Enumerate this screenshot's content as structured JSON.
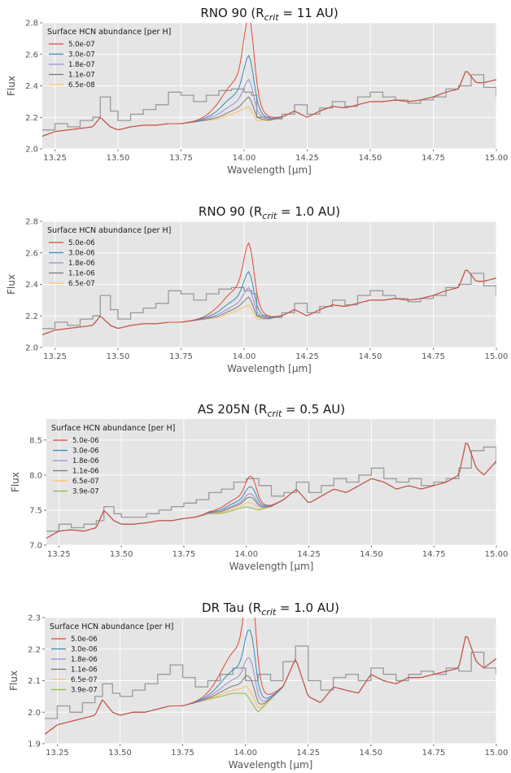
{
  "figure_title": "",
  "chart_data": [
    {
      "type": "line",
      "title_main": "RNO 90 (R",
      "title_sub": "crit",
      "title_rest": " = 11 AU)",
      "xlabel": "Wavelength [μm]",
      "ylabel": "Flux",
      "xlim": [
        13.2,
        15.0
      ],
      "ylim": [
        2.0,
        2.8
      ],
      "xticks": [
        "13.25",
        "13.50",
        "13.75",
        "14.00",
        "14.25",
        "14.50",
        "14.75",
        "15.00"
      ],
      "yticks": [
        "2.0",
        "2.2",
        "2.4",
        "2.6",
        "2.8"
      ],
      "grid": true,
      "legend_title": "Surface HCN abundance [per H]",
      "legend_position": "top-left",
      "observed": {
        "x": [
          13.2,
          13.25,
          13.3,
          13.35,
          13.4,
          13.43,
          13.47,
          13.5,
          13.55,
          13.6,
          13.65,
          13.7,
          13.75,
          13.8,
          13.85,
          13.9,
          13.95,
          14.0,
          14.03,
          14.05,
          14.1,
          14.15,
          14.2,
          14.25,
          14.3,
          14.35,
          14.4,
          14.45,
          14.5,
          14.55,
          14.6,
          14.65,
          14.7,
          14.75,
          14.8,
          14.85,
          14.9,
          14.95,
          15.0
        ],
        "y": [
          2.12,
          2.16,
          2.14,
          2.18,
          2.2,
          2.33,
          2.24,
          2.18,
          2.22,
          2.25,
          2.28,
          2.36,
          2.34,
          2.3,
          2.34,
          2.37,
          2.38,
          2.36,
          2.34,
          2.2,
          2.19,
          2.22,
          2.28,
          2.22,
          2.26,
          2.3,
          2.27,
          2.33,
          2.36,
          2.33,
          2.31,
          2.29,
          2.31,
          2.33,
          2.38,
          2.4,
          2.47,
          2.39,
          2.33
        ]
      },
      "base": {
        "x": [
          13.2,
          13.25,
          13.3,
          13.35,
          13.4,
          13.43,
          13.47,
          13.5,
          13.55,
          13.6,
          13.65,
          13.7,
          13.75,
          13.8,
          13.85,
          13.9,
          13.95,
          13.98,
          14.02,
          14.05,
          14.1,
          14.15,
          14.2,
          14.25,
          14.3,
          14.35,
          14.4,
          14.45,
          14.5,
          14.55,
          14.6,
          14.65,
          14.7,
          14.75,
          14.8,
          14.85,
          14.88,
          14.92,
          14.95,
          15.0
        ],
        "y": [
          2.08,
          2.11,
          2.12,
          2.13,
          2.14,
          2.2,
          2.14,
          2.12,
          2.14,
          2.15,
          2.15,
          2.16,
          2.16,
          2.17,
          2.18,
          2.19,
          2.22,
          2.24,
          2.27,
          2.18,
          2.18,
          2.2,
          2.24,
          2.2,
          2.24,
          2.27,
          2.26,
          2.28,
          2.3,
          2.3,
          2.31,
          2.3,
          2.31,
          2.33,
          2.36,
          2.38,
          2.5,
          2.42,
          2.42,
          2.44
        ]
      },
      "series": [
        {
          "name": "5.0e-07",
          "color": "#E24A33",
          "peak": 2.84
        },
        {
          "name": "3.0e-07",
          "color": "#348ABD",
          "peak": 2.59
        },
        {
          "name": "1.8e-07",
          "color": "#988ED5",
          "peak": 2.44
        },
        {
          "name": "1.1e-07",
          "color": "#777777",
          "peak": 2.33
        },
        {
          "name": "6.5e-08",
          "color": "#FBC15E",
          "peak": 2.27
        }
      ]
    },
    {
      "type": "line",
      "title_main": "RNO 90  (R",
      "title_sub": "crit",
      "title_rest": " = 1.0 AU)",
      "xlabel": "Wavelength [μm]",
      "ylabel": "Flux",
      "xlim": [
        13.2,
        15.0
      ],
      "ylim": [
        2.0,
        2.8
      ],
      "xticks": [
        "13.25",
        "13.50",
        "13.75",
        "14.00",
        "14.25",
        "14.50",
        "14.75",
        "15.00"
      ],
      "yticks": [
        "2.0",
        "2.2",
        "2.4",
        "2.6",
        "2.8"
      ],
      "grid": true,
      "legend_title": "Surface HCN abundance [per H]",
      "legend_position": "top-left",
      "observed": {
        "x": [
          13.2,
          13.25,
          13.3,
          13.35,
          13.4,
          13.43,
          13.47,
          13.5,
          13.55,
          13.6,
          13.65,
          13.7,
          13.75,
          13.8,
          13.85,
          13.9,
          13.95,
          14.0,
          14.03,
          14.05,
          14.1,
          14.15,
          14.2,
          14.25,
          14.3,
          14.35,
          14.4,
          14.45,
          14.5,
          14.55,
          14.6,
          14.65,
          14.7,
          14.75,
          14.8,
          14.85,
          14.9,
          14.95,
          15.0
        ],
        "y": [
          2.12,
          2.16,
          2.14,
          2.18,
          2.2,
          2.33,
          2.24,
          2.18,
          2.22,
          2.25,
          2.28,
          2.36,
          2.34,
          2.3,
          2.34,
          2.37,
          2.38,
          2.36,
          2.34,
          2.2,
          2.19,
          2.22,
          2.28,
          2.22,
          2.26,
          2.3,
          2.27,
          2.33,
          2.36,
          2.33,
          2.31,
          2.29,
          2.31,
          2.33,
          2.38,
          2.4,
          2.47,
          2.39,
          2.33
        ]
      },
      "base": {
        "x": [
          13.2,
          13.25,
          13.3,
          13.35,
          13.4,
          13.43,
          13.47,
          13.5,
          13.55,
          13.6,
          13.65,
          13.7,
          13.75,
          13.8,
          13.85,
          13.9,
          13.95,
          13.98,
          14.02,
          14.05,
          14.1,
          14.15,
          14.2,
          14.25,
          14.3,
          14.35,
          14.4,
          14.45,
          14.5,
          14.55,
          14.6,
          14.65,
          14.7,
          14.75,
          14.8,
          14.85,
          14.88,
          14.92,
          14.95,
          15.0
        ],
        "y": [
          2.08,
          2.11,
          2.12,
          2.13,
          2.14,
          2.2,
          2.14,
          2.12,
          2.14,
          2.15,
          2.15,
          2.16,
          2.16,
          2.17,
          2.18,
          2.19,
          2.22,
          2.24,
          2.27,
          2.18,
          2.18,
          2.2,
          2.24,
          2.2,
          2.24,
          2.27,
          2.26,
          2.28,
          2.3,
          2.3,
          2.31,
          2.3,
          2.31,
          2.33,
          2.36,
          2.38,
          2.5,
          2.42,
          2.42,
          2.44
        ]
      },
      "series": [
        {
          "name": "5.0e-06",
          "color": "#E24A33",
          "peak": 2.68
        },
        {
          "name": "3.0e-06",
          "color": "#348ABD",
          "peak": 2.5
        },
        {
          "name": "1.8e-06",
          "color": "#988ED5",
          "peak": 2.4
        },
        {
          "name": "1.1e-06",
          "color": "#777777",
          "peak": 2.34
        },
        {
          "name": "6.5e-07",
          "color": "#FBC15E",
          "peak": 2.29
        }
      ]
    },
    {
      "type": "line",
      "title_main": "AS 205N (R",
      "title_sub": "crit",
      "title_rest": " = 0.5 AU)",
      "xlabel": "Wavelength [μm]",
      "ylabel": "Flux",
      "xlim": [
        13.2,
        15.0
      ],
      "ylim": [
        7.0,
        8.8
      ],
      "xticks": [
        "13.25",
        "13.50",
        "13.75",
        "14.00",
        "14.25",
        "14.50",
        "14.75",
        "15.00"
      ],
      "yticks": [
        "7.0",
        "7.5",
        "8.0",
        "8.5"
      ],
      "grid": true,
      "legend_title": "Surface HCN abundance [per H]",
      "legend_position": "top-left",
      "observed": {
        "x": [
          13.2,
          13.25,
          13.3,
          13.35,
          13.4,
          13.43,
          13.47,
          13.5,
          13.55,
          13.6,
          13.65,
          13.7,
          13.75,
          13.8,
          13.85,
          13.9,
          13.95,
          14.0,
          14.05,
          14.1,
          14.15,
          14.2,
          14.25,
          14.3,
          14.35,
          14.4,
          14.45,
          14.5,
          14.55,
          14.6,
          14.65,
          14.7,
          14.75,
          14.8,
          14.85,
          14.9,
          14.95,
          15.0
        ],
        "y": [
          7.2,
          7.3,
          7.25,
          7.3,
          7.35,
          7.55,
          7.45,
          7.4,
          7.4,
          7.45,
          7.5,
          7.55,
          7.6,
          7.65,
          7.75,
          7.8,
          7.9,
          7.95,
          7.85,
          7.7,
          7.75,
          7.9,
          7.75,
          7.85,
          7.95,
          7.9,
          8.0,
          8.1,
          7.95,
          7.9,
          7.95,
          7.85,
          7.9,
          7.95,
          8.1,
          8.35,
          8.4,
          8.15
        ]
      },
      "base": {
        "x": [
          13.2,
          13.25,
          13.3,
          13.35,
          13.4,
          13.43,
          13.47,
          13.5,
          13.55,
          13.6,
          13.65,
          13.7,
          13.75,
          13.8,
          13.85,
          13.9,
          13.95,
          14.0,
          14.05,
          14.1,
          14.15,
          14.2,
          14.25,
          14.3,
          14.35,
          14.4,
          14.45,
          14.5,
          14.55,
          14.6,
          14.65,
          14.7,
          14.75,
          14.8,
          14.85,
          14.88,
          14.92,
          14.95,
          15.0
        ],
        "y": [
          7.1,
          7.2,
          7.22,
          7.2,
          7.25,
          7.5,
          7.35,
          7.3,
          7.3,
          7.32,
          7.35,
          7.35,
          7.38,
          7.4,
          7.45,
          7.45,
          7.5,
          7.55,
          7.5,
          7.55,
          7.65,
          7.8,
          7.6,
          7.7,
          7.8,
          7.75,
          7.85,
          7.95,
          7.9,
          7.8,
          7.85,
          7.8,
          7.85,
          7.9,
          8.0,
          8.5,
          8.1,
          8.0,
          8.2
        ]
      },
      "series": [
        {
          "name": "5.0e-06",
          "color": "#E24A33",
          "peak": 8.1
        },
        {
          "name": "3.0e-06",
          "color": "#348ABD",
          "peak": 7.95
        },
        {
          "name": "1.8e-06",
          "color": "#988ED5",
          "peak": 7.85
        },
        {
          "name": "1.1e-06",
          "color": "#777777",
          "peak": 7.8
        },
        {
          "name": "6.5e-07",
          "color": "#FBC15E",
          "peak": 7.72
        },
        {
          "name": "3.9e-07",
          "color": "#8EBA42",
          "peak": 7.65
        }
      ]
    },
    {
      "type": "line",
      "title_main": "DR Tau (R",
      "title_sub": "crit",
      "title_rest": " = 1.0 AU)",
      "xlabel": "Wavelength [μm]",
      "ylabel": "Flux",
      "xlim": [
        13.2,
        15.0
      ],
      "ylim": [
        1.9,
        2.3
      ],
      "xticks": [
        "13.25",
        "13.50",
        "13.75",
        "14.00",
        "14.25",
        "14.50",
        "14.75",
        "15.00"
      ],
      "yticks": [
        "1.9",
        "2.0",
        "2.1",
        "2.2",
        "2.3"
      ],
      "grid": true,
      "legend_title": "Surface HCN abundance [per H]",
      "legend_position": "top-left",
      "observed": {
        "x": [
          13.2,
          13.25,
          13.3,
          13.35,
          13.4,
          13.43,
          13.47,
          13.5,
          13.55,
          13.6,
          13.65,
          13.7,
          13.75,
          13.8,
          13.85,
          13.9,
          13.95,
          14.0,
          14.05,
          14.1,
          14.15,
          14.2,
          14.25,
          14.3,
          14.35,
          14.4,
          14.45,
          14.5,
          14.55,
          14.6,
          14.65,
          14.7,
          14.75,
          14.8,
          14.85,
          14.9,
          14.95,
          15.0
        ],
        "y": [
          1.98,
          2.02,
          2.0,
          2.03,
          2.05,
          2.09,
          2.06,
          2.05,
          2.07,
          2.09,
          2.12,
          2.15,
          2.11,
          2.08,
          2.1,
          2.12,
          2.14,
          2.1,
          2.12,
          2.1,
          2.16,
          2.21,
          2.1,
          2.07,
          2.11,
          2.12,
          2.1,
          2.14,
          2.12,
          2.1,
          2.12,
          2.13,
          2.12,
          2.14,
          2.13,
          2.19,
          2.14,
          2.12
        ]
      },
      "base": {
        "x": [
          13.2,
          13.25,
          13.3,
          13.35,
          13.4,
          13.43,
          13.47,
          13.5,
          13.55,
          13.6,
          13.65,
          13.7,
          13.75,
          13.8,
          13.85,
          13.9,
          13.95,
          14.0,
          14.05,
          14.1,
          14.15,
          14.2,
          14.25,
          14.3,
          14.35,
          14.4,
          14.45,
          14.5,
          14.55,
          14.6,
          14.65,
          14.7,
          14.75,
          14.8,
          14.85,
          14.88,
          14.92,
          14.95,
          15.0
        ],
        "y": [
          1.93,
          1.96,
          1.97,
          1.98,
          1.99,
          2.04,
          2.0,
          1.99,
          2.0,
          2.0,
          2.01,
          2.02,
          2.02,
          2.03,
          2.04,
          2.05,
          2.06,
          2.06,
          2.0,
          2.04,
          2.08,
          2.17,
          2.05,
          2.03,
          2.08,
          2.07,
          2.06,
          2.12,
          2.1,
          2.09,
          2.11,
          2.11,
          2.12,
          2.13,
          2.14,
          2.25,
          2.16,
          2.14,
          2.17
        ]
      },
      "series": [
        {
          "name": "5.0e-06",
          "color": "#E24A33",
          "peak": 2.45
        },
        {
          "name": "3.0e-06",
          "color": "#348ABD",
          "peak": 2.28
        },
        {
          "name": "1.8e-06",
          "color": "#988ED5",
          "peak": 2.19
        },
        {
          "name": "1.1e-06",
          "color": "#777777",
          "peak": 2.13
        },
        {
          "name": "6.5e-07",
          "color": "#FBC15E",
          "peak": 2.09
        },
        {
          "name": "3.9e-07",
          "color": "#8EBA42",
          "peak": 2.06
        }
      ]
    }
  ]
}
